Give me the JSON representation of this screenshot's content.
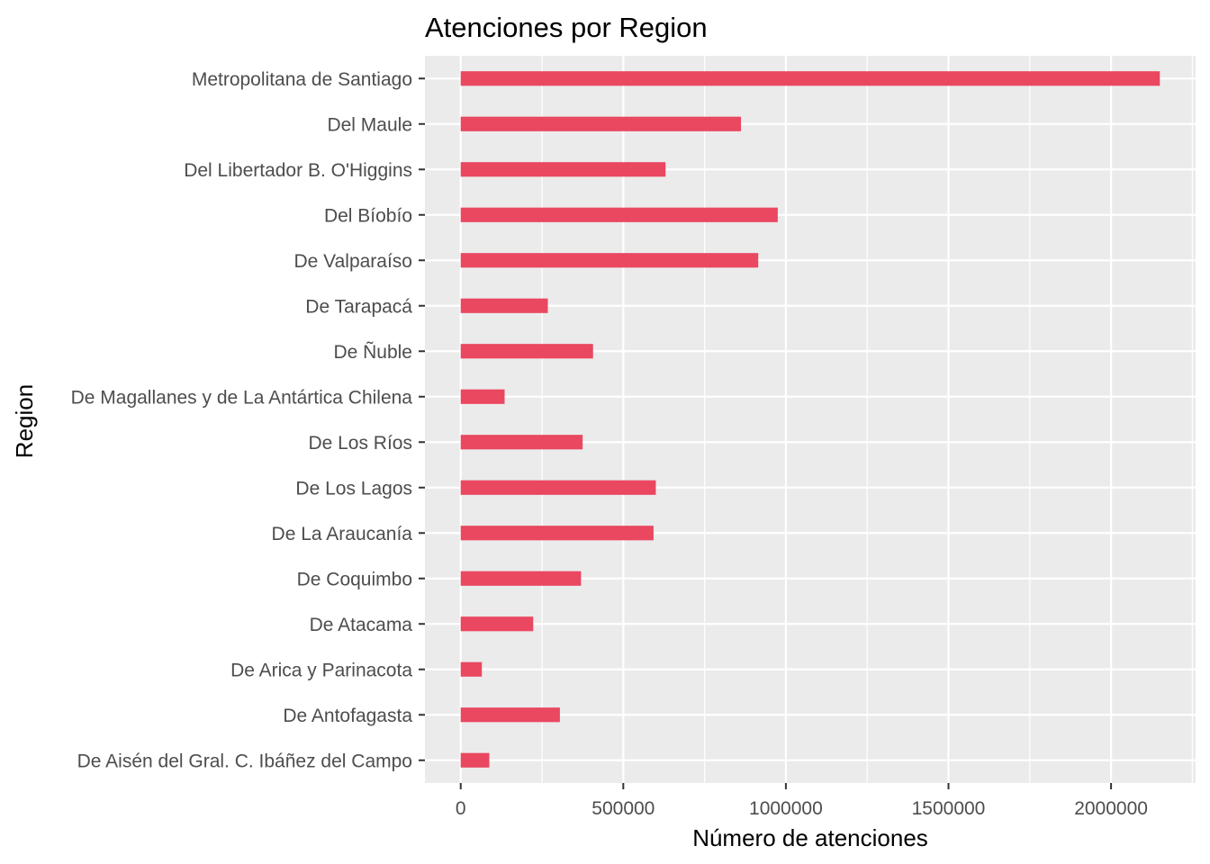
{
  "chart_data": {
    "type": "bar",
    "orientation": "horizontal",
    "title": "Atenciones por Region",
    "xlabel": "Número de atenciones",
    "ylabel": "Region",
    "xlim": [
      -110000,
      2260000
    ],
    "xticks": [
      0,
      500000,
      1000000,
      1500000,
      2000000
    ],
    "xtick_labels": [
      "0",
      "500000",
      "1000000",
      "1500000",
      "2000000"
    ],
    "grid": true,
    "legend": "none",
    "categories": [
      "Metropolitana de Santiago",
      "Del Maule",
      "Del Libertador B. O'Higgins",
      "Del Bíobío",
      "De Valparaíso",
      "De Tarapacá",
      "De Ñuble",
      "De Magallanes y de La Antártica Chilena",
      "De Los Ríos",
      "De Los Lagos",
      "De La Araucanía",
      "De Coquimbo",
      "De Atacama",
      "De Arica y Parinacota",
      "De Antofagasta",
      "De Aisén del Gral. C. Ibáñez del Campo"
    ],
    "values": [
      2150000,
      862000,
      630000,
      975000,
      915000,
      268000,
      407000,
      135000,
      375000,
      600000,
      593000,
      370000,
      223000,
      65000,
      305000,
      88000
    ],
    "bar_color": "#ea4760",
    "panel_color": "#ebebeb",
    "grid_color": "#ffffff"
  }
}
